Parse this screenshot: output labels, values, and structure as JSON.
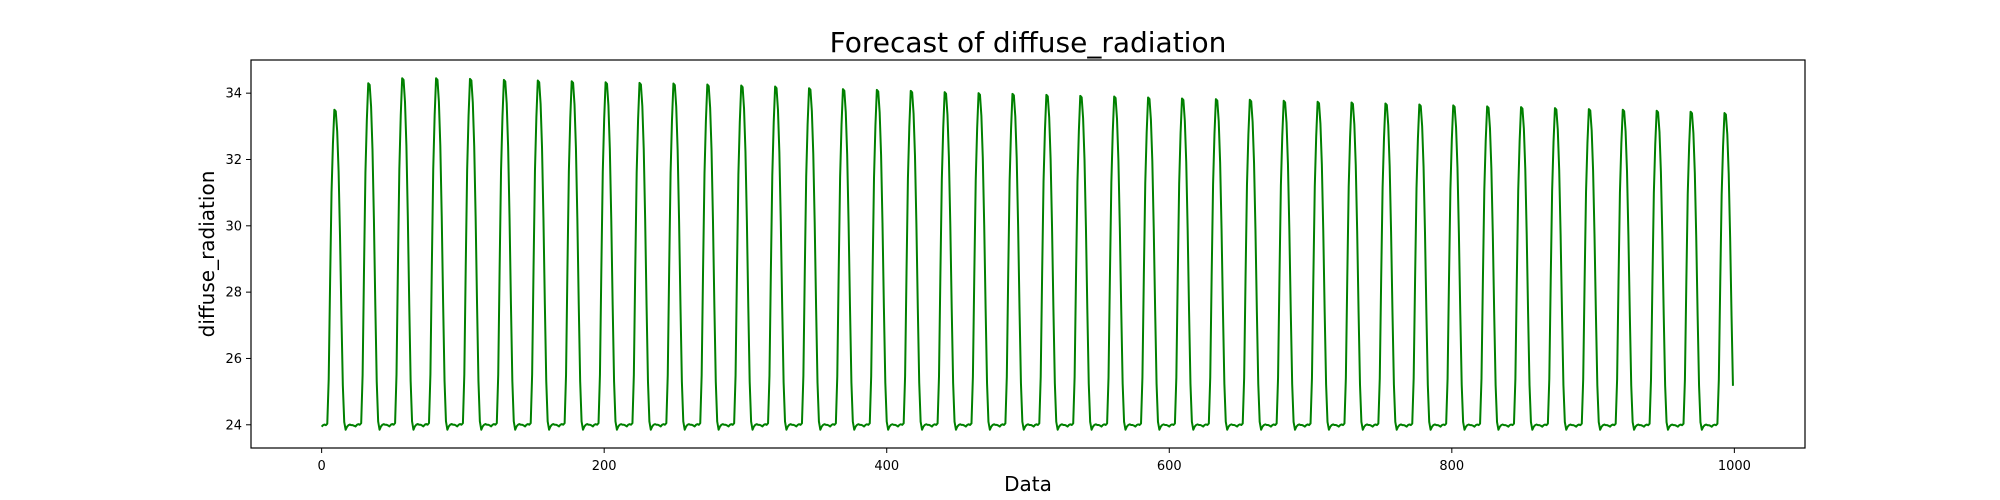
{
  "chart_data": {
    "type": "line",
    "title": "Forecast of diffuse_radiation",
    "xlabel": "Data",
    "ylabel": "diffuse_radiation",
    "xlim": [
      -50,
      1050
    ],
    "ylim": [
      23.3,
      35.0
    ],
    "xticks": [
      0,
      200,
      400,
      600,
      800,
      1000
    ],
    "yticks": [
      24,
      26,
      28,
      30,
      32,
      34
    ],
    "grid": false,
    "legend": "none",
    "period": 24,
    "series": [
      {
        "color": "#008000",
        "n_points": 1000,
        "cycle_starts": [
          0,
          24,
          48,
          72,
          96,
          120,
          144,
          168,
          192,
          216,
          240,
          264,
          288,
          312,
          336,
          360,
          384,
          408,
          432,
          456,
          480,
          504,
          528,
          552,
          576,
          600,
          624,
          648,
          672,
          696,
          720,
          744,
          768,
          792,
          816,
          840,
          864,
          888,
          912,
          936,
          960,
          984
        ],
        "cycle_shape": [
          23.95,
          24.0,
          24.02,
          24.0,
          24.05,
          25.5,
          28.7,
          31.6,
          33.2,
          34.3,
          34.25,
          33.6,
          32.3,
          30.2,
          27.6,
          25.3,
          24.1,
          23.85,
          23.95,
          24.0,
          24.02,
          24.0,
          24.0,
          23.98
        ],
        "peaks": [
          33.5,
          34.3,
          34.45,
          34.45,
          34.43,
          34.4,
          34.38,
          34.36,
          34.33,
          34.31,
          34.29,
          34.26,
          34.23,
          34.2,
          34.15,
          34.12,
          34.1,
          34.07,
          34.03,
          34.0,
          33.98,
          33.95,
          33.92,
          33.9,
          33.87,
          33.84,
          33.82,
          33.8,
          33.77,
          33.74,
          33.72,
          33.69,
          33.66,
          33.63,
          33.6,
          33.58,
          33.55,
          33.52,
          33.5,
          33.47,
          33.44,
          33.4
        ]
      }
    ]
  }
}
